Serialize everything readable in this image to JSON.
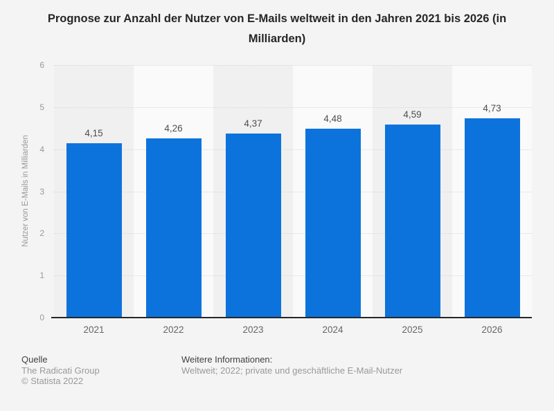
{
  "page": {
    "title": "Prognose zur Anzahl der Nutzer von E-Mails weltweit in den Jahren 2021 bis 2026 (in Milliarden)"
  },
  "chart_data": {
    "type": "bar",
    "title": "Prognose zur Anzahl der Nutzer von E-Mails weltweit in den Jahren 2021 bis 2026 (in Milliarden)",
    "categories": [
      "2021",
      "2022",
      "2023",
      "2024",
      "2025",
      "2026"
    ],
    "values": [
      4.15,
      4.26,
      4.37,
      4.48,
      4.59,
      4.73
    ],
    "value_labels": [
      "4,15",
      "4,26",
      "4,37",
      "4,48",
      "4,59",
      "4,73"
    ],
    "xlabel": "",
    "ylabel": "Nutzer von E-Mails in Milliarden",
    "ylim": [
      0,
      6
    ],
    "yticks": [
      0,
      1,
      2,
      3,
      4,
      5,
      6
    ],
    "grid": true,
    "legend": false,
    "legend_position": "none"
  },
  "colors": {
    "background": "#f4f4f4",
    "band_odd": "#f0f0f0",
    "band_even": "#fafafa",
    "bar": "#0d73dc",
    "gridline": "#d8d8d8",
    "axis_line": "#262626",
    "title_text": "#262626",
    "value_label": "#4d4d4d",
    "tick_label": "#999999",
    "category_label": "#666666"
  },
  "footer": {
    "source_label": "Quelle",
    "source_lines": [
      "The Radicati Group",
      "© Statista 2022"
    ],
    "info_label": "Weitere Informationen:",
    "info_lines": [
      "Weltweit; 2022; private und geschäftliche E-Mail-Nutzer"
    ]
  }
}
